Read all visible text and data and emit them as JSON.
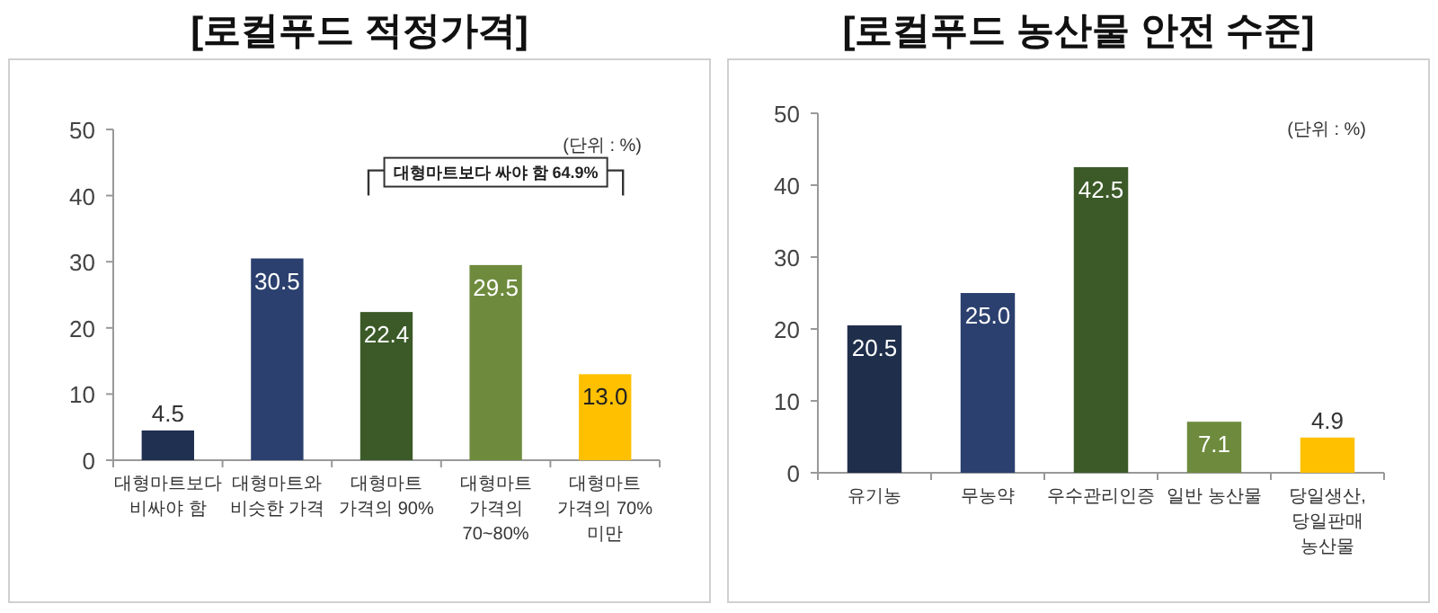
{
  "chart_data": [
    {
      "type": "bar",
      "title": "[로컬푸드 적정가격]",
      "categories": [
        "대형마트보다\n비싸야 함",
        "대형마트와\n비슷한 가격",
        "대형마트\n가격의 90%",
        "대형마트\n가격의\n70~80%",
        "대형마트\n가격의 70%\n미만"
      ],
      "values": [
        4.5,
        30.5,
        22.4,
        29.5,
        13.0
      ],
      "colors": [
        "#1f3050",
        "#2b406e",
        "#3b5a28",
        "#6e8b3d",
        "#ffc000"
      ],
      "value_labels": [
        "4.5",
        "30.5",
        "22.4",
        "29.5",
        "13.0"
      ],
      "ylim": [
        0,
        50
      ],
      "yticks": [
        0,
        10,
        20,
        30,
        40,
        50
      ],
      "grid": false,
      "annotations": [
        "(단위 : %)",
        "대형마트보다 싸야 함 64.9%"
      ]
    },
    {
      "type": "bar",
      "title": "[로컬푸드 농산물 안전 수준]",
      "categories": [
        "유기농",
        "무농약",
        "우수관리인증",
        "일반 농산물",
        "당일생산,\n당일판매\n농산물"
      ],
      "values": [
        20.5,
        25.0,
        42.5,
        7.1,
        4.9
      ],
      "colors": [
        "#1f2e4a",
        "#2b406e",
        "#3b5a28",
        "#6e8b3d",
        "#ffc000"
      ],
      "value_labels": [
        "20.5",
        "25.0",
        "42.5",
        "7.1",
        "4.9"
      ],
      "ylim": [
        0,
        50
      ],
      "yticks": [
        0,
        10,
        20,
        30,
        40,
        50
      ],
      "grid": false,
      "annotations": [
        "(단위 : %)"
      ]
    }
  ]
}
